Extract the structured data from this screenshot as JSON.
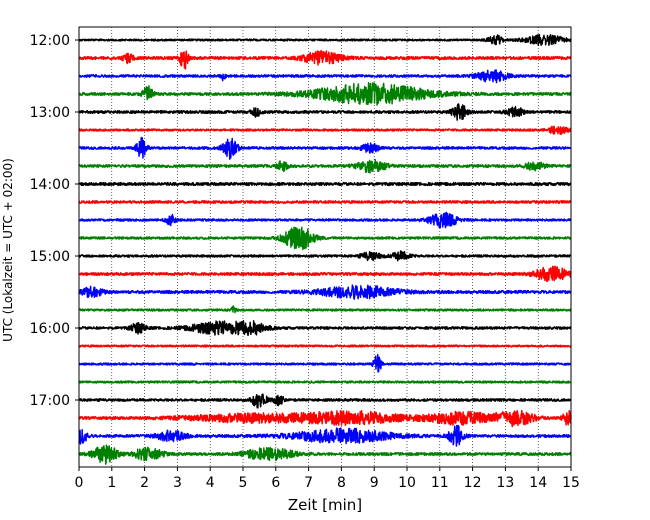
{
  "chart_data": {
    "type": "line",
    "title": "",
    "xlabel": "Zeit  [min]",
    "ylabel": "UTC (Lokalzeit = UTC + 02:00)",
    "xlim": [
      0,
      15
    ],
    "x_ticks": [
      "0",
      "1",
      "2",
      "3",
      "4",
      "5",
      "6",
      "7",
      "8",
      "9",
      "10",
      "11",
      "12",
      "13",
      "14",
      "15"
    ],
    "y_ticks": [
      "12:00",
      "13:00",
      "14:00",
      "15:00",
      "16:00",
      "17:00"
    ],
    "trace_minutes_per_row": 15,
    "vertical_grid": "dotted",
    "colors_cycle": [
      "#000000",
      "#ff0000",
      "#0000ff",
      "#008000"
    ],
    "rows": [
      {
        "start": "12:00",
        "color": "#000000",
        "noise": 0.9,
        "events": [
          {
            "t": 12.7,
            "a": 4.5,
            "d": 0.15
          },
          {
            "t": 14.2,
            "a": 5,
            "d": 0.4
          }
        ]
      },
      {
        "start": "12:15",
        "color": "#ff0000",
        "noise": 1.4,
        "events": [
          {
            "t": 1.5,
            "a": 5,
            "d": 0.1
          },
          {
            "t": 3.2,
            "a": 12,
            "d": 0.08
          },
          {
            "t": 7.4,
            "a": 6,
            "d": 0.4
          }
        ]
      },
      {
        "start": "12:30",
        "color": "#0000ff",
        "noise": 1.2,
        "events": [
          {
            "t": 4.4,
            "a": 4,
            "d": 0.05
          },
          {
            "t": 12.6,
            "a": 6,
            "d": 0.3
          }
        ]
      },
      {
        "start": "12:45",
        "color": "#008000",
        "noise": 1.3,
        "events": [
          {
            "t": 2.1,
            "a": 9,
            "d": 0.1
          },
          {
            "t": 8.9,
            "a": 10,
            "d": 1.2
          }
        ]
      },
      {
        "start": "13:00",
        "color": "#000000",
        "noise": 1.3,
        "events": [
          {
            "t": 5.4,
            "a": 4,
            "d": 0.1
          },
          {
            "t": 11.6,
            "a": 8,
            "d": 0.15
          },
          {
            "t": 13.3,
            "a": 4,
            "d": 0.2
          }
        ]
      },
      {
        "start": "13:15",
        "color": "#ff0000",
        "noise": 1.0,
        "events": [
          {
            "t": 14.6,
            "a": 4,
            "d": 0.2
          }
        ]
      },
      {
        "start": "13:30",
        "color": "#0000ff",
        "noise": 1.2,
        "events": [
          {
            "t": 1.9,
            "a": 10,
            "d": 0.1
          },
          {
            "t": 4.6,
            "a": 10,
            "d": 0.15
          },
          {
            "t": 8.9,
            "a": 4,
            "d": 0.2
          }
        ]
      },
      {
        "start": "13:45",
        "color": "#008000",
        "noise": 1.3,
        "events": [
          {
            "t": 6.2,
            "a": 5,
            "d": 0.1
          },
          {
            "t": 8.9,
            "a": 6,
            "d": 0.3
          },
          {
            "t": 13.9,
            "a": 4,
            "d": 0.2
          }
        ]
      },
      {
        "start": "14:00",
        "color": "#000000",
        "noise": 1.4,
        "events": []
      },
      {
        "start": "14:15",
        "color": "#ff0000",
        "noise": 1.2,
        "events": []
      },
      {
        "start": "14:30",
        "color": "#0000ff",
        "noise": 1.1,
        "events": [
          {
            "t": 2.8,
            "a": 5,
            "d": 0.1
          },
          {
            "t": 11.1,
            "a": 7,
            "d": 0.3
          }
        ]
      },
      {
        "start": "14:45",
        "color": "#008000",
        "noise": 1.1,
        "events": [
          {
            "t": 6.7,
            "a": 12,
            "d": 0.3
          }
        ]
      },
      {
        "start": "15:00",
        "color": "#000000",
        "noise": 1.1,
        "events": [
          {
            "t": 8.9,
            "a": 4,
            "d": 0.2
          },
          {
            "t": 9.8,
            "a": 4,
            "d": 0.2
          }
        ]
      },
      {
        "start": "15:15",
        "color": "#ff0000",
        "noise": 1.3,
        "events": [
          {
            "t": 14.4,
            "a": 7,
            "d": 0.35
          }
        ]
      },
      {
        "start": "15:30",
        "color": "#0000ff",
        "noise": 1.4,
        "events": [
          {
            "t": 0.4,
            "a": 5,
            "d": 0.2
          },
          {
            "t": 8.5,
            "a": 6,
            "d": 0.8
          }
        ]
      },
      {
        "start": "15:45",
        "color": "#008000",
        "noise": 1.0,
        "events": [
          {
            "t": 4.7,
            "a": 4,
            "d": 0.05
          }
        ]
      },
      {
        "start": "16:00",
        "color": "#000000",
        "noise": 1.2,
        "events": [
          {
            "t": 1.8,
            "a": 5,
            "d": 0.15
          },
          {
            "t": 4.3,
            "a": 6,
            "d": 0.6
          },
          {
            "t": 5.3,
            "a": 5,
            "d": 0.3
          }
        ]
      },
      {
        "start": "16:15",
        "color": "#ff0000",
        "noise": 0.9,
        "events": []
      },
      {
        "start": "16:30",
        "color": "#0000ff",
        "noise": 1.0,
        "events": [
          {
            "t": 9.1,
            "a": 9,
            "d": 0.08
          }
        ]
      },
      {
        "start": "16:45",
        "color": "#008000",
        "noise": 1.0,
        "events": []
      },
      {
        "start": "17:00",
        "color": "#000000",
        "noise": 1.2,
        "events": [
          {
            "t": 5.5,
            "a": 8,
            "d": 0.15
          },
          {
            "t": 6.1,
            "a": 5,
            "d": 0.1
          }
        ]
      },
      {
        "start": "17:15",
        "color": "#ff0000",
        "noise": 1.3,
        "events": [
          {
            "t": 5.4,
            "a": 4,
            "d": 1.4
          },
          {
            "t": 8.4,
            "a": 6,
            "d": 1.0
          },
          {
            "t": 11.6,
            "a": 6,
            "d": 0.7
          },
          {
            "t": 13.3,
            "a": 7,
            "d": 0.4
          },
          {
            "t": 14.9,
            "a": 7,
            "d": 0.1
          }
        ]
      },
      {
        "start": "17:30",
        "color": "#0000ff",
        "noise": 1.3,
        "events": [
          {
            "t": 0.1,
            "a": 9,
            "d": 0.1
          },
          {
            "t": 2.8,
            "a": 5,
            "d": 0.3
          },
          {
            "t": 8.0,
            "a": 7,
            "d": 1.0
          },
          {
            "t": 11.5,
            "a": 10,
            "d": 0.15
          }
        ]
      },
      {
        "start": "17:45",
        "color": "#008000",
        "noise": 1.3,
        "events": [
          {
            "t": 0.8,
            "a": 9,
            "d": 0.25
          },
          {
            "t": 2.1,
            "a": 6,
            "d": 0.3
          },
          {
            "t": 5.8,
            "a": 6,
            "d": 0.5
          }
        ]
      }
    ]
  }
}
